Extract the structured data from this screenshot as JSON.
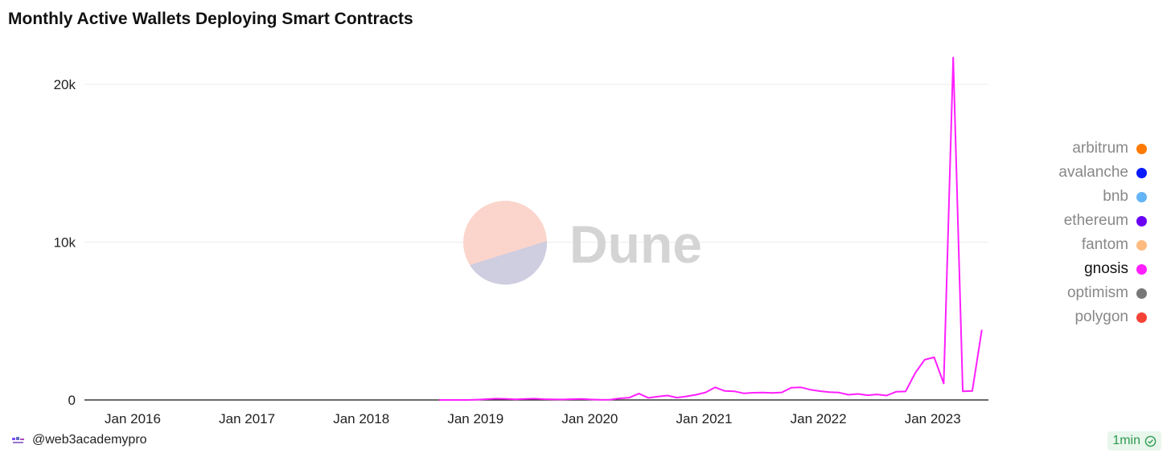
{
  "title": "Monthly Active Wallets Deploying Smart Contracts",
  "watermark": "Dune",
  "author": "@web3academypro",
  "refresh_badge": "1min",
  "legend": [
    {
      "label": "arbitrum",
      "color": "#ff7a00",
      "active": false
    },
    {
      "label": "avalanche",
      "color": "#0a1aff",
      "active": false
    },
    {
      "label": "bnb",
      "color": "#64b5f6",
      "active": false
    },
    {
      "label": "ethereum",
      "color": "#6a00f4",
      "active": false
    },
    {
      "label": "fantom",
      "color": "#ffbb80",
      "active": false
    },
    {
      "label": "gnosis",
      "color": "#ff1fff",
      "active": true
    },
    {
      "label": "optimism",
      "color": "#777777",
      "active": false
    },
    {
      "label": "polygon",
      "color": "#f44336",
      "active": false
    }
  ],
  "chart_data": {
    "type": "line",
    "title": "Monthly Active Wallets Deploying Smart Contracts",
    "xlabel": "",
    "ylabel": "",
    "x_ticks": [
      "Jan 2016",
      "Jan 2017",
      "Jan 2018",
      "Jan 2019",
      "Jan 2020",
      "Jan 2021",
      "Jan 2022",
      "Jan 2023"
    ],
    "y_ticks": [
      "0",
      "10k",
      "20k"
    ],
    "ylim": [
      0,
      20000
    ],
    "grid": true,
    "legend_position": "right",
    "series": [
      {
        "name": "gnosis",
        "color": "#ff1fff",
        "points": [
          [
            "2018-10",
            0
          ],
          [
            "2018-11",
            0
          ],
          [
            "2018-12",
            0
          ],
          [
            "2019-01",
            0
          ],
          [
            "2019-02",
            20
          ],
          [
            "2019-03",
            50
          ],
          [
            "2019-04",
            80
          ],
          [
            "2019-05",
            70
          ],
          [
            "2019-06",
            40
          ],
          [
            "2019-07",
            60
          ],
          [
            "2019-08",
            80
          ],
          [
            "2019-09",
            50
          ],
          [
            "2019-10",
            40
          ],
          [
            "2019-11",
            30
          ],
          [
            "2019-12",
            50
          ],
          [
            "2020-01",
            60
          ],
          [
            "2020-02",
            30
          ],
          [
            "2020-03",
            10
          ],
          [
            "2020-04",
            20
          ],
          [
            "2020-05",
            100
          ],
          [
            "2020-06",
            150
          ],
          [
            "2020-07",
            400
          ],
          [
            "2020-08",
            130
          ],
          [
            "2020-09",
            220
          ],
          [
            "2020-10",
            280
          ],
          [
            "2020-11",
            150
          ],
          [
            "2020-12",
            230
          ],
          [
            "2021-01",
            330
          ],
          [
            "2021-02",
            480
          ],
          [
            "2021-03",
            800
          ],
          [
            "2021-04",
            570
          ],
          [
            "2021-05",
            550
          ],
          [
            "2021-06",
            420
          ],
          [
            "2021-07",
            460
          ],
          [
            "2021-08",
            470
          ],
          [
            "2021-09",
            450
          ],
          [
            "2021-10",
            480
          ],
          [
            "2021-11",
            780
          ],
          [
            "2021-12",
            800
          ],
          [
            "2022-01",
            650
          ],
          [
            "2022-02",
            560
          ],
          [
            "2022-03",
            500
          ],
          [
            "2022-04",
            470
          ],
          [
            "2022-05",
            330
          ],
          [
            "2022-06",
            380
          ],
          [
            "2022-07",
            300
          ],
          [
            "2022-08",
            350
          ],
          [
            "2022-09",
            280
          ],
          [
            "2022-10",
            520
          ],
          [
            "2022-11",
            540
          ],
          [
            "2022-12",
            1700
          ],
          [
            "2023-01",
            2550
          ],
          [
            "2023-02",
            2700
          ],
          [
            "2023-03",
            1050
          ],
          [
            "2023-04",
            21700
          ],
          [
            "2023-05",
            550
          ],
          [
            "2023-06",
            570
          ],
          [
            "2023-07",
            4450
          ]
        ]
      }
    ]
  }
}
